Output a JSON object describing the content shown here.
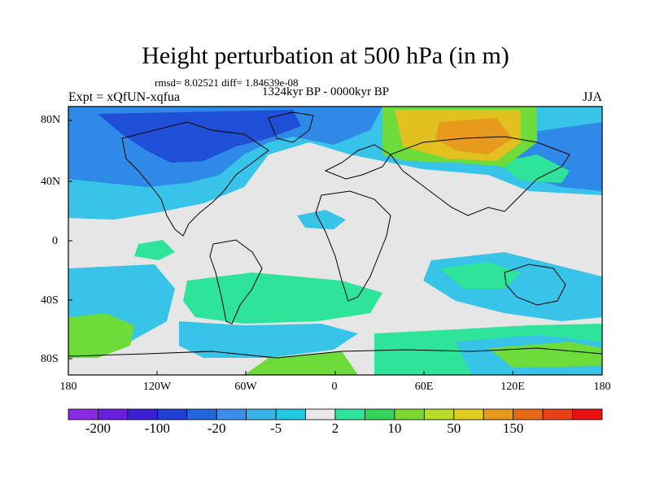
{
  "title": "Height perturbation at 500 hPa (in m)",
  "stats": "rmsd= 8.02521 diff= 1.84639e-08",
  "subtitle": "1324kyr BP - 0000kyr BP",
  "experiment": "Expt = xQfUN-xqfua",
  "season": "JJA",
  "axes": {
    "y_ticks": [
      "80N",
      "40N",
      "0",
      "40S",
      "80S"
    ],
    "x_ticks": [
      "180",
      "120W",
      "60W",
      "0",
      "60E",
      "120E",
      "180"
    ]
  },
  "colorbar": {
    "colors": [
      "#8a2be2",
      "#6a1fe0",
      "#3d1fd6",
      "#1f3fd6",
      "#2266dd",
      "#3c8fe8",
      "#38b4e8",
      "#22c8e0",
      "#e8e8e8",
      "#2ee39a",
      "#34d45a",
      "#7dd832",
      "#b8dc28",
      "#e2cc20",
      "#e69a1c",
      "#e86a18",
      "#e84018",
      "#e81010"
    ],
    "labels": [
      "-200",
      "-100",
      "-20",
      "-5",
      "2",
      "10",
      "50",
      "150"
    ]
  },
  "map_colors": {
    "background": "#e6e6e6",
    "strong_negative": "#1f4fd6",
    "negative": "#2e8ae6",
    "weak_negative": "#38c3e8",
    "weak_positive": "#2ee39a",
    "positive": "#6ddc3a",
    "strong_positive": "#b8dc28",
    "high_positive": "#e2c020",
    "peak": "#e89a1c"
  }
}
